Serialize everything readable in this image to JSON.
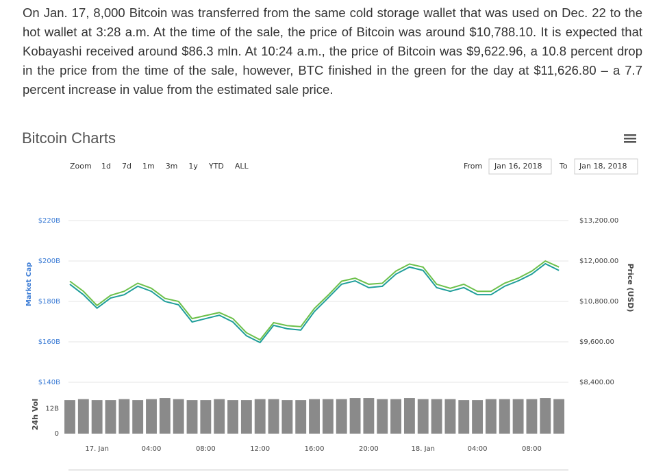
{
  "article": {
    "paragraph": "On Jan. 17, 8,000 Bitcoin was transferred from the same cold storage wallet that was used on Dec. 22 to the hot wallet at 3:28 a.m. At the time of the sale, the price of Bitcoin was around $10,788.10. It is expected that Kobayashi received around $86.3 mln. At 10:24 a.m., the price of Bitcoin was $9,622.96, a 10.8 percent drop in the price from the time of the sale, however, BTC finished in the green for the day at $11,626.80 – a 7.7 percent increase in value from the estimated sale price."
  },
  "controls": {
    "zoom_label": "Zoom",
    "zoom_buttons": [
      "1d",
      "7d",
      "1m",
      "3m",
      "1y",
      "YTD",
      "ALL"
    ],
    "from_label": "From",
    "from_date": "Jan 16, 2018",
    "to_label": "To",
    "to_date": "Jan 18, 2018"
  },
  "chart_data": {
    "type": "line",
    "title": "Bitcoin Charts",
    "y_label": "Market Cap",
    "y2_label": "Price (USD)",
    "volume_label": "24h Vol",
    "x": [
      -2,
      -1,
      0,
      1,
      2,
      3,
      4,
      5,
      6,
      7,
      8,
      9,
      10,
      11,
      12,
      13,
      14,
      15,
      16,
      17,
      18,
      19,
      20,
      21,
      22,
      23,
      24,
      25,
      26,
      27,
      28,
      29,
      30,
      31,
      32,
      33,
      34
    ],
    "xlim": [
      -2.1,
      34.7
    ],
    "xticks": [
      {
        "value": 0,
        "label": "17. Jan"
      },
      {
        "value": 4,
        "label": "04:00"
      },
      {
        "value": 8,
        "label": "08:00"
      },
      {
        "value": 12,
        "label": "12:00"
      },
      {
        "value": 16,
        "label": "16:00"
      },
      {
        "value": 20,
        "label": "20:00"
      },
      {
        "value": 24,
        "label": "18. Jan"
      },
      {
        "value": 28,
        "label": "04:00"
      },
      {
        "value": 32,
        "label": "08:00"
      }
    ],
    "ylim": [
      140,
      220
    ],
    "yticks": [
      {
        "value": 140,
        "label": "$140B"
      },
      {
        "value": 160,
        "label": "$160B"
      },
      {
        "value": 180,
        "label": "$180B"
      },
      {
        "value": 200,
        "label": "$200B"
      },
      {
        "value": 220,
        "label": "$220B"
      }
    ],
    "y2lim": [
      8400,
      13200
    ],
    "y2ticks": [
      {
        "value": 8400,
        "label": "$8,400.00"
      },
      {
        "value": 9600,
        "label": "$9,600.00"
      },
      {
        "value": 10800,
        "label": "$10,800.00"
      },
      {
        "value": 12000,
        "label": "$12,000.00"
      },
      {
        "value": 13200,
        "label": "$13,200.00"
      }
    ],
    "grid": true,
    "series": [
      {
        "color": "#6cc04a",
        "values": [
          190,
          185,
          178,
          183,
          185,
          189,
          186.5,
          181.5,
          180,
          171.5,
          173,
          174.5,
          171.5,
          164.5,
          161,
          169.5,
          168,
          167.5,
          176.5,
          183,
          190,
          191.5,
          188.5,
          189,
          195,
          198.5,
          197,
          188.5,
          186.5,
          188.5,
          185,
          185,
          189,
          191.5,
          195,
          200,
          197
        ]
      },
      {
        "color": "#1f9e9a",
        "axis": "y2",
        "values": [
          11310,
          11000,
          10600,
          10900,
          11000,
          11250,
          11100,
          10800,
          10700,
          10190,
          10290,
          10390,
          10190,
          9780,
          9580,
          10090,
          9990,
          9950,
          10500,
          10900,
          11310,
          11410,
          11210,
          11250,
          11610,
          11820,
          11720,
          11210,
          11100,
          11210,
          11000,
          11000,
          11250,
          11410,
          11610,
          11920,
          11720
        ]
      }
    ],
    "volume": {
      "color": "#8a8a8a",
      "ylim": [
        0,
        18
      ],
      "yticks": [
        0,
        {
          "value": 12,
          "label": "12B"
        }
      ],
      "values": [
        16,
        16.5,
        16,
        16,
        16.5,
        16,
        16.5,
        17,
        16.5,
        16,
        16,
        16.5,
        16,
        16,
        16.5,
        16.5,
        16,
        16,
        16.5,
        16.5,
        16.5,
        17,
        17,
        16.5,
        16.5,
        17,
        16.5,
        16.5,
        16.5,
        16,
        16,
        16.5,
        16.5,
        16.5,
        16.5,
        17,
        16.5
      ]
    }
  }
}
